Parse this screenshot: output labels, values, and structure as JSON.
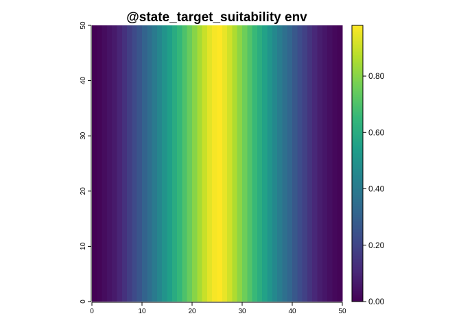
{
  "chart_data": {
    "type": "heatmap",
    "title": "@state_target_suitability  env",
    "xlabel": "",
    "ylabel": "",
    "xlim": [
      0,
      50
    ],
    "ylim": [
      0,
      50
    ],
    "x_ticks": [
      0,
      10,
      20,
      30,
      40,
      50
    ],
    "y_ticks": [
      0,
      10,
      20,
      30,
      40,
      50
    ],
    "x_tick_labels": [
      "0",
      "10",
      "20",
      "30",
      "40",
      "50"
    ],
    "y_tick_labels": [
      "0",
      "10",
      "20",
      "30",
      "40",
      "50"
    ],
    "colormap": "viridis",
    "grid": false,
    "x_centers": [
      0.5,
      1.5,
      2.5,
      3.5,
      4.5,
      5.5,
      6.5,
      7.5,
      8.5,
      9.5,
      10.5,
      11.5,
      12.5,
      13.5,
      14.5,
      15.5,
      16.5,
      17.5,
      18.5,
      19.5,
      20.5,
      21.5,
      22.5,
      23.5,
      24.5,
      25.5,
      26.5,
      27.5,
      28.5,
      29.5,
      30.5,
      31.5,
      32.5,
      33.5,
      34.5,
      35.5,
      36.5,
      37.5,
      38.5,
      39.5,
      40.5,
      41.5,
      42.5,
      43.5,
      44.5,
      45.5,
      46.5,
      47.5,
      48.5,
      49.5
    ],
    "values": [
      0.0,
      0.01,
      0.03,
      0.05,
      0.07,
      0.1,
      0.14,
      0.18,
      0.22,
      0.26,
      0.31,
      0.35,
      0.4,
      0.45,
      0.5,
      0.55,
      0.6,
      0.65,
      0.7,
      0.75,
      0.8,
      0.85,
      0.9,
      0.94,
      0.97,
      0.98,
      0.95,
      0.91,
      0.86,
      0.81,
      0.76,
      0.71,
      0.66,
      0.61,
      0.56,
      0.51,
      0.46,
      0.41,
      0.36,
      0.32,
      0.27,
      0.23,
      0.19,
      0.15,
      0.11,
      0.08,
      0.06,
      0.04,
      0.02,
      0.01
    ],
    "values_note_rows": "identical for every y row",
    "legend": {
      "position": "right",
      "range": [
        0.0,
        0.98
      ],
      "ticks": [
        0.0,
        0.2,
        0.4,
        0.6,
        0.8
      ],
      "tick_labels": [
        "0.00",
        "0.20",
        "0.40",
        "0.60",
        "0.80"
      ]
    },
    "colors": {
      "viridis_stops": [
        "#440154",
        "#482878",
        "#3e4989",
        "#31688e",
        "#26828e",
        "#1f9e89",
        "#35b779",
        "#6ece58",
        "#b5de2b",
        "#fde725"
      ]
    }
  }
}
